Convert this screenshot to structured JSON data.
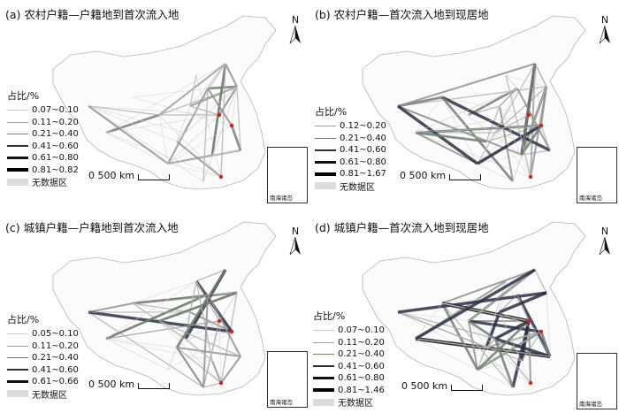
{
  "panels": [
    {
      "title": "(a) 农村户籍—户籍地到首次流入地",
      "legend_title": "占比/%",
      "legend": [
        {
          "label": "0.07~0.10",
          "color": "#c8c8c8",
          "width": 1
        },
        {
          "label": "0.11~0.20",
          "color": "#a0a0a0",
          "width": 1.3
        },
        {
          "label": "0.21~0.40",
          "color": "#6f7f6f",
          "width": 1.8
        },
        {
          "label": "0.41~0.60",
          "color": "#2a2f45",
          "width": 2.5
        },
        {
          "label": "0.61~0.80",
          "color": "#111111",
          "width": 3.2
        },
        {
          "label": "0.81~0.82",
          "color": "#000000",
          "width": 4.2
        }
      ],
      "nodata": "无数据区",
      "scale": "500 km",
      "north": "N",
      "inset": "南海诸岛"
    },
    {
      "title": "(b) 农村户籍—首次流入地到现居地",
      "legend_title": "占比/%",
      "legend": [
        {
          "label": "0.12~0.20",
          "color": "#a0a0a0",
          "width": 1.3
        },
        {
          "label": "0.21~0.40",
          "color": "#6f7f6f",
          "width": 1.8
        },
        {
          "label": "0.41~0.60",
          "color": "#2a2f45",
          "width": 2.5
        },
        {
          "label": "0.61~0.80",
          "color": "#111111",
          "width": 3.2
        },
        {
          "label": "0.81~1.67",
          "color": "#000000",
          "width": 4.2
        }
      ],
      "nodata": "无数据区",
      "scale": "500 km",
      "north": "N",
      "inset": "南海诸岛"
    },
    {
      "title": "(c) 城镇户籍—户籍地到首次流入地",
      "legend_title": "占比/%",
      "legend": [
        {
          "label": "0.05~0.10",
          "color": "#c8c8c8",
          "width": 1
        },
        {
          "label": "0.11~0.20",
          "color": "#a0a0a0",
          "width": 1.3
        },
        {
          "label": "0.21~0.40",
          "color": "#6f7f6f",
          "width": 1.8
        },
        {
          "label": "0.41~0.60",
          "color": "#2a2f45",
          "width": 2.5
        },
        {
          "label": "0.61~0.66",
          "color": "#111111",
          "width": 3.4
        }
      ],
      "nodata": "无数据区",
      "scale": "500 km",
      "north": "N",
      "inset": "南海诸岛"
    },
    {
      "title": "(d) 城镇户籍—首次流入地到现居地",
      "legend_title": "占比/%",
      "legend": [
        {
          "label": "0.07~0.10",
          "color": "#c8c8c8",
          "width": 1
        },
        {
          "label": "0.11~0.20",
          "color": "#a0a0a0",
          "width": 1.3
        },
        {
          "label": "0.21~0.40",
          "color": "#6f7f6f",
          "width": 1.8
        },
        {
          "label": "0.41~0.60",
          "color": "#2a2f45",
          "width": 2.5
        },
        {
          "label": "0.61~0.80",
          "color": "#111111",
          "width": 3.2
        },
        {
          "label": "0.81~1.46",
          "color": "#000000",
          "width": 4.2
        }
      ],
      "nodata": "无数据区",
      "scale": "500 km",
      "north": "N",
      "inset": "南海诸岛"
    }
  ]
}
